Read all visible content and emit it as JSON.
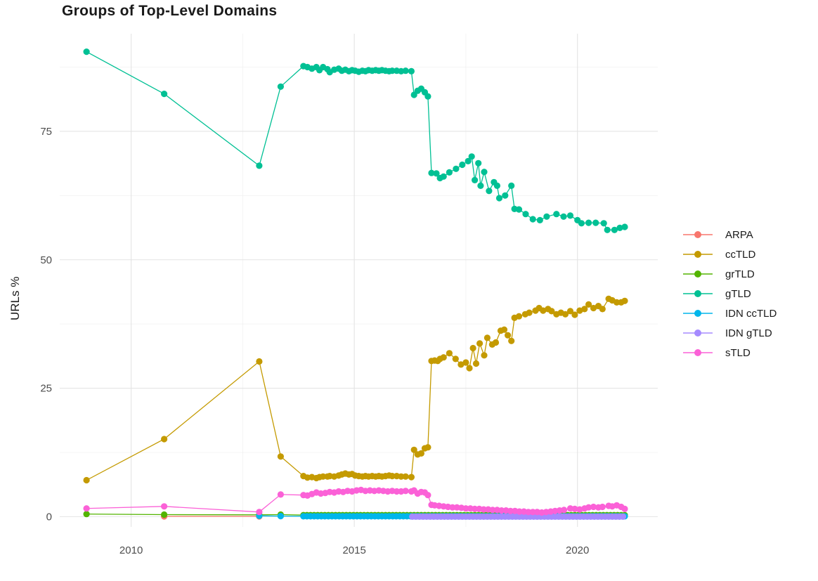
{
  "chart_data": {
    "type": "line",
    "title": "Groups of Top-Level Domains",
    "xlabel": "",
    "ylabel": "URLs %",
    "x_ticks": [
      2010,
      2015,
      2020
    ],
    "x_minor_ticks": [
      2012.5,
      2017.5
    ],
    "y_ticks": [
      0,
      25,
      50,
      75
    ],
    "y_minor_ticks": [
      12.5,
      37.5,
      62.5,
      87.5
    ],
    "xlim": [
      2008.4,
      2021.8
    ],
    "ylim": [
      -2,
      94
    ],
    "grid": "major+minor",
    "legend_position": "right",
    "marker": "point-on-line",
    "series": [
      {
        "name": "ARPA",
        "color": "#F8766D",
        "points": [
          [
            2010.74,
            0.05
          ],
          [
            2012.87,
            0.05
          ]
        ]
      },
      {
        "name": "ccTLD",
        "color": "#C49A00",
        "points": [
          [
            2009.0,
            7.1
          ],
          [
            2010.74,
            15.1
          ],
          [
            2012.87,
            30.2
          ],
          [
            2013.35,
            11.7
          ],
          [
            2013.86,
            7.9
          ],
          [
            2013.95,
            7.6
          ],
          [
            2014.05,
            7.7
          ],
          [
            2014.15,
            7.5
          ],
          [
            2014.22,
            7.7
          ],
          [
            2014.3,
            7.8
          ],
          [
            2014.4,
            7.8
          ],
          [
            2014.45,
            7.9
          ],
          [
            2014.55,
            7.8
          ],
          [
            2014.65,
            8.0
          ],
          [
            2014.72,
            8.2
          ],
          [
            2014.8,
            8.4
          ],
          [
            2014.88,
            8.2
          ],
          [
            2014.95,
            8.3
          ],
          [
            2015.02,
            8.0
          ],
          [
            2015.1,
            7.9
          ],
          [
            2015.18,
            7.8
          ],
          [
            2015.25,
            7.9
          ],
          [
            2015.32,
            7.8
          ],
          [
            2015.4,
            7.9
          ],
          [
            2015.48,
            7.8
          ],
          [
            2015.55,
            7.9
          ],
          [
            2015.62,
            7.8
          ],
          [
            2015.7,
            7.9
          ],
          [
            2015.78,
            8.0
          ],
          [
            2015.85,
            7.9
          ],
          [
            2015.95,
            7.9
          ],
          [
            2016.05,
            7.8
          ],
          [
            2016.15,
            7.8
          ],
          [
            2016.28,
            7.7
          ],
          [
            2016.34,
            13.0
          ],
          [
            2016.42,
            12.1
          ],
          [
            2016.5,
            12.3
          ],
          [
            2016.58,
            13.3
          ],
          [
            2016.65,
            13.5
          ],
          [
            2016.73,
            30.3
          ],
          [
            2016.8,
            30.4
          ],
          [
            2016.87,
            30.3
          ],
          [
            2016.92,
            30.7
          ],
          [
            2017.0,
            31.0
          ],
          [
            2017.13,
            31.8
          ],
          [
            2017.27,
            30.7
          ],
          [
            2017.39,
            29.6
          ],
          [
            2017.5,
            30.0
          ],
          [
            2017.58,
            28.9
          ],
          [
            2017.66,
            32.8
          ],
          [
            2017.73,
            29.8
          ],
          [
            2017.81,
            33.7
          ],
          [
            2017.91,
            31.4
          ],
          [
            2017.98,
            34.8
          ],
          [
            2018.09,
            33.5
          ],
          [
            2018.17,
            33.9
          ],
          [
            2018.28,
            36.2
          ],
          [
            2018.36,
            36.4
          ],
          [
            2018.44,
            35.3
          ],
          [
            2018.52,
            34.2
          ],
          [
            2018.59,
            38.7
          ],
          [
            2018.69,
            39.0
          ],
          [
            2018.83,
            39.4
          ],
          [
            2018.92,
            39.7
          ],
          [
            2019.06,
            40.1
          ],
          [
            2019.14,
            40.6
          ],
          [
            2019.23,
            40.1
          ],
          [
            2019.34,
            40.4
          ],
          [
            2019.42,
            40.0
          ],
          [
            2019.53,
            39.4
          ],
          [
            2019.63,
            39.7
          ],
          [
            2019.73,
            39.4
          ],
          [
            2019.84,
            40.0
          ],
          [
            2019.94,
            39.3
          ],
          [
            2020.05,
            40.1
          ],
          [
            2020.16,
            40.4
          ],
          [
            2020.25,
            41.3
          ],
          [
            2020.36,
            40.6
          ],
          [
            2020.47,
            41.0
          ],
          [
            2020.56,
            40.4
          ],
          [
            2020.7,
            42.4
          ],
          [
            2020.78,
            42.1
          ],
          [
            2020.88,
            41.7
          ],
          [
            2020.98,
            41.7
          ],
          [
            2021.06,
            42.0
          ]
        ]
      },
      {
        "name": "grTLD",
        "color": "#53B400",
        "points": [
          [
            2009.0,
            0.5
          ],
          [
            2010.74,
            0.4
          ],
          [
            2012.87,
            0.35
          ],
          [
            2013.35,
            0.4
          ]
        ],
        "runs": [
          {
            "from": 2013.86,
            "to": 2021.06,
            "step": 0.08,
            "value": 0.3
          }
        ]
      },
      {
        "name": "gTLD",
        "color": "#00C094",
        "points": [
          [
            2009.0,
            90.5
          ],
          [
            2010.74,
            82.3
          ],
          [
            2012.87,
            68.3
          ],
          [
            2013.35,
            83.7
          ],
          [
            2013.86,
            87.7
          ],
          [
            2013.95,
            87.5
          ],
          [
            2014.05,
            87.2
          ],
          [
            2014.15,
            87.5
          ],
          [
            2014.22,
            86.9
          ],
          [
            2014.3,
            87.5
          ],
          [
            2014.4,
            87.1
          ],
          [
            2014.45,
            86.5
          ],
          [
            2014.55,
            87.0
          ],
          [
            2014.65,
            87.2
          ],
          [
            2014.72,
            86.8
          ],
          [
            2014.8,
            87.0
          ],
          [
            2014.88,
            86.7
          ],
          [
            2014.95,
            86.9
          ],
          [
            2015.02,
            86.8
          ],
          [
            2015.1,
            86.6
          ],
          [
            2015.18,
            86.8
          ],
          [
            2015.25,
            86.7
          ],
          [
            2015.32,
            86.9
          ],
          [
            2015.4,
            86.8
          ],
          [
            2015.48,
            86.9
          ],
          [
            2015.55,
            86.8
          ],
          [
            2015.62,
            86.9
          ],
          [
            2015.7,
            86.8
          ],
          [
            2015.78,
            86.7
          ],
          [
            2015.85,
            86.8
          ],
          [
            2015.95,
            86.8
          ],
          [
            2016.05,
            86.7
          ],
          [
            2016.15,
            86.8
          ],
          [
            2016.28,
            86.7
          ],
          [
            2016.34,
            82.1
          ],
          [
            2016.42,
            82.9
          ],
          [
            2016.5,
            83.3
          ],
          [
            2016.58,
            82.6
          ],
          [
            2016.65,
            81.8
          ],
          [
            2016.73,
            66.9
          ],
          [
            2016.84,
            66.8
          ],
          [
            2016.92,
            65.9
          ],
          [
            2017.0,
            66.2
          ],
          [
            2017.13,
            67.0
          ],
          [
            2017.28,
            67.7
          ],
          [
            2017.42,
            68.5
          ],
          [
            2017.55,
            69.2
          ],
          [
            2017.63,
            70.1
          ],
          [
            2017.7,
            65.5
          ],
          [
            2017.78,
            68.8
          ],
          [
            2017.83,
            64.4
          ],
          [
            2017.91,
            67.1
          ],
          [
            2018.02,
            63.4
          ],
          [
            2018.13,
            65.1
          ],
          [
            2018.2,
            64.4
          ],
          [
            2018.25,
            62.0
          ],
          [
            2018.38,
            62.5
          ],
          [
            2018.52,
            64.4
          ],
          [
            2018.59,
            59.9
          ],
          [
            2018.69,
            59.8
          ],
          [
            2018.84,
            58.9
          ],
          [
            2019.0,
            57.9
          ],
          [
            2019.16,
            57.7
          ],
          [
            2019.31,
            58.4
          ],
          [
            2019.53,
            58.9
          ],
          [
            2019.69,
            58.4
          ],
          [
            2019.84,
            58.6
          ],
          [
            2020.0,
            57.7
          ],
          [
            2020.09,
            57.1
          ],
          [
            2020.25,
            57.2
          ],
          [
            2020.41,
            57.2
          ],
          [
            2020.59,
            57.1
          ],
          [
            2020.67,
            55.8
          ],
          [
            2020.83,
            55.8
          ],
          [
            2020.95,
            56.2
          ],
          [
            2021.06,
            56.4
          ]
        ]
      },
      {
        "name": "IDN ccTLD",
        "color": "#00B6EB",
        "points": [
          [
            2012.87,
            0.15
          ],
          [
            2013.35,
            0.1
          ]
        ],
        "runs": [
          {
            "from": 2013.86,
            "to": 2021.06,
            "step": 0.08,
            "value": 0.07
          }
        ]
      },
      {
        "name": "IDN gTLD",
        "color": "#A58AFF",
        "points": [],
        "runs": [
          {
            "from": 2016.3,
            "to": 2021.06,
            "step": 0.08,
            "value": 0.0
          }
        ]
      },
      {
        "name": "sTLD",
        "color": "#FB61D7",
        "points": [
          [
            2009.0,
            1.6
          ],
          [
            2010.74,
            2.0
          ],
          [
            2012.87,
            0.9
          ],
          [
            2013.35,
            4.3
          ],
          [
            2013.86,
            4.2
          ],
          [
            2013.95,
            4.1
          ],
          [
            2014.05,
            4.4
          ],
          [
            2014.15,
            4.7
          ],
          [
            2014.25,
            4.5
          ],
          [
            2014.35,
            4.6
          ],
          [
            2014.45,
            4.8
          ],
          [
            2014.55,
            4.7
          ],
          [
            2014.65,
            4.9
          ],
          [
            2014.75,
            4.8
          ],
          [
            2014.85,
            5.0
          ],
          [
            2014.95,
            4.9
          ],
          [
            2015.05,
            5.1
          ],
          [
            2015.15,
            5.2
          ],
          [
            2015.25,
            5.0
          ],
          [
            2015.35,
            5.1
          ],
          [
            2015.45,
            5.0
          ],
          [
            2015.55,
            5.1
          ],
          [
            2015.65,
            5.0
          ],
          [
            2015.75,
            4.9
          ],
          [
            2015.85,
            5.0
          ],
          [
            2015.95,
            4.9
          ],
          [
            2016.05,
            4.9
          ],
          [
            2016.15,
            5.0
          ],
          [
            2016.28,
            4.9
          ],
          [
            2016.34,
            5.1
          ],
          [
            2016.42,
            4.5
          ],
          [
            2016.5,
            4.8
          ],
          [
            2016.58,
            4.7
          ],
          [
            2016.65,
            4.2
          ],
          [
            2016.73,
            2.3
          ],
          [
            2016.8,
            2.2
          ],
          [
            2016.9,
            2.1
          ],
          [
            2017.0,
            2.0
          ],
          [
            2017.1,
            1.9
          ],
          [
            2017.2,
            1.8
          ],
          [
            2017.3,
            1.8
          ],
          [
            2017.4,
            1.7
          ],
          [
            2017.5,
            1.6
          ],
          [
            2017.6,
            1.6
          ],
          [
            2017.7,
            1.5
          ],
          [
            2017.8,
            1.5
          ],
          [
            2017.9,
            1.4
          ],
          [
            2018.0,
            1.4
          ],
          [
            2018.1,
            1.3
          ],
          [
            2018.2,
            1.3
          ],
          [
            2018.3,
            1.2
          ],
          [
            2018.4,
            1.2
          ],
          [
            2018.5,
            1.1
          ],
          [
            2018.6,
            1.1
          ],
          [
            2018.7,
            1.0
          ],
          [
            2018.8,
            1.0
          ],
          [
            2018.9,
            0.9
          ],
          [
            2019.0,
            0.9
          ],
          [
            2019.1,
            0.9
          ],
          [
            2019.2,
            0.8
          ],
          [
            2019.3,
            0.9
          ],
          [
            2019.4,
            1.0
          ],
          [
            2019.5,
            1.1
          ],
          [
            2019.6,
            1.2
          ],
          [
            2019.7,
            1.3
          ],
          [
            2019.84,
            1.6
          ],
          [
            2019.94,
            1.5
          ],
          [
            2020.05,
            1.4
          ],
          [
            2020.16,
            1.6
          ],
          [
            2020.25,
            1.8
          ],
          [
            2020.36,
            1.9
          ],
          [
            2020.47,
            1.8
          ],
          [
            2020.56,
            1.9
          ],
          [
            2020.7,
            2.1
          ],
          [
            2020.78,
            2.0
          ],
          [
            2020.88,
            2.2
          ],
          [
            2020.98,
            1.9
          ],
          [
            2021.06,
            1.5
          ]
        ]
      }
    ],
    "style": {
      "background": "#ffffff",
      "major_grid_color": "#e4e4e4",
      "minor_grid_color": "#f0f0f0",
      "tick_label_color": "#4d4d4d",
      "title_color": "#1a1a1a",
      "point_radius": 4.6,
      "line_width": 1.3
    }
  }
}
